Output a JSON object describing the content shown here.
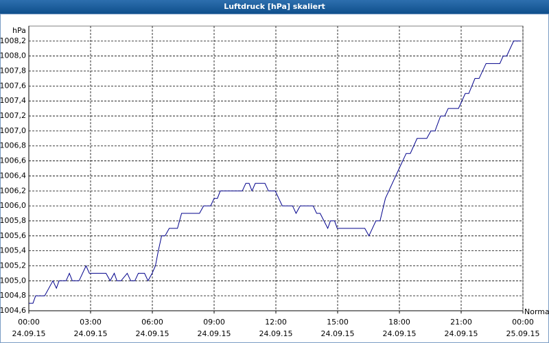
{
  "chart_data": {
    "type": "line",
    "title": "Luftdruck [hPa] skaliert",
    "ylabel": "hPa",
    "xlim": [
      0,
      24
    ],
    "ylim": [
      1004.6,
      1008.4
    ],
    "grid": true,
    "xticks": [
      {
        "value": 0,
        "label": "00:00\n24.09.15"
      },
      {
        "value": 3,
        "label": "03:00\n24.09.15"
      },
      {
        "value": 6,
        "label": "06:00\n24.09.15"
      },
      {
        "value": 9,
        "label": "09:00\n24.09.15"
      },
      {
        "value": 12,
        "label": "12:00\n24.09.15"
      },
      {
        "value": 15,
        "label": "15:00\n24.09.15"
      },
      {
        "value": 18,
        "label": "18:00\n24.09.15"
      },
      {
        "value": 21,
        "label": "21:00\n24.09.15"
      },
      {
        "value": 24,
        "label": "00:00\n25.09.15"
      }
    ],
    "yticks": [
      {
        "value": 1004.6,
        "label": "1004,6"
      },
      {
        "value": 1004.8,
        "label": "1004,8"
      },
      {
        "value": 1005.0,
        "label": "1005,0"
      },
      {
        "value": 1005.2,
        "label": "1005,2"
      },
      {
        "value": 1005.4,
        "label": "1005,4"
      },
      {
        "value": 1005.6,
        "label": "1005,6"
      },
      {
        "value": 1005.8,
        "label": "1005,8"
      },
      {
        "value": 1006.0,
        "label": "1006,0"
      },
      {
        "value": 1006.2,
        "label": "1006,2"
      },
      {
        "value": 1006.4,
        "label": "1006,4"
      },
      {
        "value": 1006.6,
        "label": "1006,6"
      },
      {
        "value": 1006.8,
        "label": "1006,8"
      },
      {
        "value": 1007.0,
        "label": "1007,0"
      },
      {
        "value": 1007.2,
        "label": "1007,2"
      },
      {
        "value": 1007.4,
        "label": "1007,4"
      },
      {
        "value": 1007.6,
        "label": "1007,6"
      },
      {
        "value": 1007.8,
        "label": "1007,8"
      },
      {
        "value": 1008.0,
        "label": "1008,0"
      },
      {
        "value": 1008.2,
        "label": "1008,2"
      }
    ],
    "x": [
      0,
      0.2,
      0.33,
      0.77,
      1.17,
      1.34,
      1.47,
      1.81,
      1.97,
      2.11,
      2.44,
      2.78,
      2.94,
      3.75,
      3.95,
      4.15,
      4.28,
      4.48,
      4.78,
      4.95,
      5.15,
      5.32,
      5.62,
      5.79,
      5.99,
      6.15,
      6.29,
      6.45,
      6.62,
      6.82,
      7.22,
      7.42,
      8.29,
      8.49,
      8.83,
      9.0,
      9.16,
      9.3,
      10.37,
      10.54,
      10.7,
      10.84,
      11.0,
      11.47,
      11.64,
      11.97,
      12.31,
      12.81,
      12.98,
      13.18,
      13.81,
      13.98,
      14.15,
      14.52,
      14.65,
      14.85,
      14.98,
      16.32,
      16.52,
      16.86,
      17.06,
      17.32,
      17.99,
      18.33,
      18.53,
      18.86,
      19.33,
      19.53,
      19.73,
      20.0,
      20.2,
      20.37,
      20.87,
      21.2,
      21.37,
      21.67,
      21.87,
      22.21,
      22.88,
      23.04,
      23.21,
      23.55,
      23.88
    ],
    "series": [
      {
        "name": "Normal",
        "color": "#00008b",
        "values": [
          1004.7,
          1004.7,
          1004.8,
          1004.8,
          1005.0,
          1004.9,
          1005.0,
          1005.0,
          1005.1,
          1005.0,
          1005.0,
          1005.2,
          1005.1,
          1005.1,
          1005.0,
          1005.1,
          1005.0,
          1005.0,
          1005.1,
          1005.0,
          1005.0,
          1005.1,
          1005.1,
          1005.0,
          1005.1,
          1005.2,
          1005.4,
          1005.6,
          1005.6,
          1005.7,
          1005.7,
          1005.9,
          1005.9,
          1006.0,
          1006.0,
          1006.1,
          1006.1,
          1006.2,
          1006.2,
          1006.3,
          1006.3,
          1006.2,
          1006.3,
          1006.3,
          1006.2,
          1006.2,
          1006.0,
          1006.0,
          1005.9,
          1006.0,
          1006.0,
          1005.9,
          1005.9,
          1005.7,
          1005.8,
          1005.8,
          1005.7,
          1005.7,
          1005.6,
          1005.8,
          1005.8,
          1006.1,
          1006.5,
          1006.7,
          1006.7,
          1006.9,
          1006.9,
          1007.0,
          1007.0,
          1007.2,
          1007.2,
          1007.3,
          1007.3,
          1007.5,
          1007.5,
          1007.7,
          1007.7,
          1007.9,
          1007.9,
          1008.0,
          1008.0,
          1008.2,
          1008.2
        ]
      }
    ]
  }
}
